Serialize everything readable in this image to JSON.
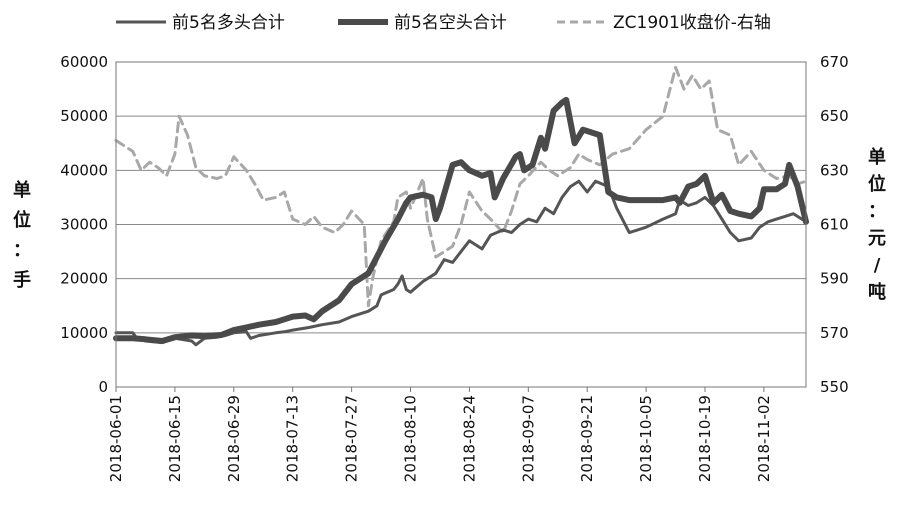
{
  "chart_data": {
    "type": "line",
    "title": "",
    "legend_position": "top",
    "grid": true,
    "left_axis": {
      "label_chars": [
        "单",
        "位",
        "：",
        "手"
      ],
      "ylim": [
        0,
        60000
      ],
      "ticks": [
        "0",
        "10000",
        "20000",
        "30000",
        "40000",
        "50000",
        "60000"
      ]
    },
    "right_axis": {
      "label_chars": [
        "单",
        "位",
        "：",
        "元",
        "/",
        "吨"
      ],
      "ylim": [
        550,
        670
      ],
      "ticks": [
        "550",
        "570",
        "590",
        "610",
        "630",
        "650",
        "670"
      ]
    },
    "x_axis": {
      "range": [
        "2018-06-01",
        "2018-11-12"
      ],
      "tick_labels": [
        "2018-06-01",
        "2018-06-15",
        "2018-06-29",
        "2018-07-13",
        "2018-07-27",
        "2018-08-10",
        "2018-08-24",
        "2018-09-07",
        "2018-09-21",
        "2018-10-05",
        "2018-10-19",
        "2018-11-02"
      ]
    },
    "series": [
      {
        "name": "前5名多头合计",
        "axis": "left",
        "color": "#555555",
        "style": "solid-thin",
        "points": [
          [
            "2018-06-01",
            10000
          ],
          [
            "2018-06-05",
            10000
          ],
          [
            "2018-06-06",
            9000
          ],
          [
            "2018-06-08",
            8500
          ],
          [
            "2018-06-12",
            8200
          ],
          [
            "2018-06-15",
            9000
          ],
          [
            "2018-06-19",
            8500
          ],
          [
            "2018-06-20",
            7800
          ],
          [
            "2018-06-22",
            9000
          ],
          [
            "2018-06-25",
            9200
          ],
          [
            "2018-06-27",
            9500
          ],
          [
            "2018-06-29",
            10000
          ],
          [
            "2018-07-02",
            10200
          ],
          [
            "2018-07-03",
            9000
          ],
          [
            "2018-07-05",
            9500
          ],
          [
            "2018-07-09",
            10000
          ],
          [
            "2018-07-11",
            10200
          ],
          [
            "2018-07-13",
            10500
          ],
          [
            "2018-07-17",
            11000
          ],
          [
            "2018-07-20",
            11500
          ],
          [
            "2018-07-24",
            12000
          ],
          [
            "2018-07-27",
            13000
          ],
          [
            "2018-07-31",
            14000
          ],
          [
            "2018-08-02",
            15000
          ],
          [
            "2018-08-03",
            17000
          ],
          [
            "2018-08-06",
            18000
          ],
          [
            "2018-08-07",
            19000
          ],
          [
            "2018-08-08",
            20500
          ],
          [
            "2018-08-09",
            18000
          ],
          [
            "2018-08-10",
            17500
          ],
          [
            "2018-08-13",
            19500
          ],
          [
            "2018-08-16",
            21000
          ],
          [
            "2018-08-18",
            23500
          ],
          [
            "2018-08-20",
            23000
          ],
          [
            "2018-08-22",
            25000
          ],
          [
            "2018-08-24",
            27000
          ],
          [
            "2018-08-27",
            25500
          ],
          [
            "2018-08-29",
            28000
          ],
          [
            "2018-09-01",
            29000
          ],
          [
            "2018-09-03",
            28500
          ],
          [
            "2018-09-05",
            30000
          ],
          [
            "2018-09-07",
            31000
          ],
          [
            "2018-09-09",
            30500
          ],
          [
            "2018-09-11",
            33000
          ],
          [
            "2018-09-13",
            32000
          ],
          [
            "2018-09-15",
            35000
          ],
          [
            "2018-09-17",
            37000
          ],
          [
            "2018-09-19",
            38000
          ],
          [
            "2018-09-21",
            36000
          ],
          [
            "2018-09-23",
            38000
          ],
          [
            "2018-09-26",
            37000
          ],
          [
            "2018-09-28",
            33000
          ],
          [
            "2018-10-01",
            28500
          ],
          [
            "2018-10-05",
            29500
          ],
          [
            "2018-10-09",
            31000
          ],
          [
            "2018-10-12",
            32000
          ],
          [
            "2018-10-13",
            34500
          ],
          [
            "2018-10-15",
            33500
          ],
          [
            "2018-10-17",
            34000
          ],
          [
            "2018-10-19",
            35000
          ],
          [
            "2018-10-21",
            33500
          ],
          [
            "2018-10-23",
            31000
          ],
          [
            "2018-10-25",
            28500
          ],
          [
            "2018-10-27",
            27000
          ],
          [
            "2018-10-30",
            27500
          ],
          [
            "2018-11-01",
            29500
          ],
          [
            "2018-11-03",
            30500
          ],
          [
            "2018-11-05",
            31000
          ],
          [
            "2018-11-07",
            31500
          ],
          [
            "2018-11-09",
            32000
          ],
          [
            "2018-11-11",
            31000
          ],
          [
            "2018-11-12",
            30500
          ]
        ]
      },
      {
        "name": "前5名空头合计",
        "axis": "left",
        "color": "#4a4a4a",
        "style": "solid-thick",
        "points": [
          [
            "2018-06-01",
            9000
          ],
          [
            "2018-06-05",
            9000
          ],
          [
            "2018-06-08",
            8800
          ],
          [
            "2018-06-12",
            8500
          ],
          [
            "2018-06-15",
            9200
          ],
          [
            "2018-06-19",
            9500
          ],
          [
            "2018-06-22",
            9400
          ],
          [
            "2018-06-26",
            9600
          ],
          [
            "2018-06-29",
            10500
          ],
          [
            "2018-07-02",
            11000
          ],
          [
            "2018-07-05",
            11500
          ],
          [
            "2018-07-09",
            12000
          ],
          [
            "2018-07-11",
            12500
          ],
          [
            "2018-07-13",
            13000
          ],
          [
            "2018-07-16",
            13200
          ],
          [
            "2018-07-18",
            12500
          ],
          [
            "2018-07-20",
            14000
          ],
          [
            "2018-07-24",
            16000
          ],
          [
            "2018-07-27",
            19000
          ],
          [
            "2018-07-31",
            21000
          ],
          [
            "2018-08-02",
            24000
          ],
          [
            "2018-08-04",
            27000
          ],
          [
            "2018-08-07",
            31000
          ],
          [
            "2018-08-09",
            34000
          ],
          [
            "2018-08-10",
            35000
          ],
          [
            "2018-08-13",
            35500
          ],
          [
            "2018-08-15",
            35000
          ],
          [
            "2018-08-16",
            31000
          ],
          [
            "2018-08-17",
            33000
          ],
          [
            "2018-08-20",
            41000
          ],
          [
            "2018-08-22",
            41500
          ],
          [
            "2018-08-24",
            40000
          ],
          [
            "2018-08-27",
            39000
          ],
          [
            "2018-08-29",
            39500
          ],
          [
            "2018-08-30",
            35000
          ],
          [
            "2018-09-01",
            38500
          ],
          [
            "2018-09-04",
            42500
          ],
          [
            "2018-09-05",
            43000
          ],
          [
            "2018-09-06",
            40000
          ],
          [
            "2018-09-08",
            41000
          ],
          [
            "2018-09-10",
            46000
          ],
          [
            "2018-09-11",
            44000
          ],
          [
            "2018-09-13",
            51000
          ],
          [
            "2018-09-15",
            52500
          ],
          [
            "2018-09-16",
            53000
          ],
          [
            "2018-09-18",
            45000
          ],
          [
            "2018-09-20",
            47500
          ],
          [
            "2018-09-24",
            46500
          ],
          [
            "2018-09-26",
            36000
          ],
          [
            "2018-09-28",
            35000
          ],
          [
            "2018-10-01",
            34500
          ],
          [
            "2018-10-05",
            34500
          ],
          [
            "2018-10-09",
            34500
          ],
          [
            "2018-10-12",
            35000
          ],
          [
            "2018-10-13",
            34000
          ],
          [
            "2018-10-15",
            37000
          ],
          [
            "2018-10-17",
            37500
          ],
          [
            "2018-10-19",
            39000
          ],
          [
            "2018-10-21",
            34000
          ],
          [
            "2018-10-23",
            35500
          ],
          [
            "2018-10-25",
            32500
          ],
          [
            "2018-10-27",
            32000
          ],
          [
            "2018-10-30",
            31500
          ],
          [
            "2018-11-01",
            33000
          ],
          [
            "2018-11-02",
            36500
          ],
          [
            "2018-11-05",
            36500
          ],
          [
            "2018-11-07",
            37500
          ],
          [
            "2018-11-08",
            41000
          ],
          [
            "2018-11-10",
            37000
          ],
          [
            "2018-11-12",
            30500
          ]
        ]
      },
      {
        "name": "ZC1901收盘价-右轴",
        "axis": "right",
        "color": "#a8a8a8",
        "style": "dashed",
        "points": [
          [
            "2018-06-01",
            641
          ],
          [
            "2018-06-05",
            637
          ],
          [
            "2018-06-07",
            630
          ],
          [
            "2018-06-09",
            633
          ],
          [
            "2018-06-11",
            631
          ],
          [
            "2018-06-13",
            628
          ],
          [
            "2018-06-15",
            636
          ],
          [
            "2018-06-16",
            650
          ],
          [
            "2018-06-18",
            643
          ],
          [
            "2018-06-20",
            631
          ],
          [
            "2018-06-22",
            628
          ],
          [
            "2018-06-25",
            627
          ],
          [
            "2018-06-27",
            628
          ],
          [
            "2018-06-29",
            635
          ],
          [
            "2018-07-02",
            630
          ],
          [
            "2018-07-04",
            625
          ],
          [
            "2018-07-06",
            619
          ],
          [
            "2018-07-09",
            620
          ],
          [
            "2018-07-11",
            622
          ],
          [
            "2018-07-13",
            612
          ],
          [
            "2018-07-16",
            610
          ],
          [
            "2018-07-18",
            613
          ],
          [
            "2018-07-20",
            609
          ],
          [
            "2018-07-23",
            607
          ],
          [
            "2018-07-25",
            610
          ],
          [
            "2018-07-27",
            615
          ],
          [
            "2018-07-30",
            610
          ],
          [
            "2018-07-31",
            580
          ],
          [
            "2018-08-01",
            590
          ],
          [
            "2018-08-03",
            604
          ],
          [
            "2018-08-06",
            611
          ],
          [
            "2018-08-07",
            620
          ],
          [
            "2018-08-09",
            622
          ],
          [
            "2018-08-10",
            616
          ],
          [
            "2018-08-13",
            627
          ],
          [
            "2018-08-14",
            612
          ],
          [
            "2018-08-16",
            598
          ],
          [
            "2018-08-18",
            600
          ],
          [
            "2018-08-20",
            602
          ],
          [
            "2018-08-22",
            610
          ],
          [
            "2018-08-24",
            622
          ],
          [
            "2018-08-27",
            615
          ],
          [
            "2018-08-29",
            612
          ],
          [
            "2018-09-01",
            607
          ],
          [
            "2018-09-03",
            615
          ],
          [
            "2018-09-05",
            625
          ],
          [
            "2018-09-07",
            628
          ],
          [
            "2018-09-10",
            633
          ],
          [
            "2018-09-12",
            630
          ],
          [
            "2018-09-14",
            628
          ],
          [
            "2018-09-17",
            631
          ],
          [
            "2018-09-19",
            636
          ],
          [
            "2018-09-21",
            634
          ],
          [
            "2018-09-24",
            632
          ],
          [
            "2018-09-27",
            636
          ],
          [
            "2018-10-01",
            638
          ],
          [
            "2018-10-05",
            645
          ],
          [
            "2018-10-09",
            650
          ],
          [
            "2018-10-12",
            668
          ],
          [
            "2018-10-14",
            660
          ],
          [
            "2018-10-16",
            665
          ],
          [
            "2018-10-18",
            660
          ],
          [
            "2018-10-20",
            663
          ],
          [
            "2018-10-22",
            645
          ],
          [
            "2018-10-25",
            643
          ],
          [
            "2018-10-27",
            632
          ],
          [
            "2018-10-30",
            637
          ],
          [
            "2018-11-02",
            630
          ],
          [
            "2018-11-05",
            627
          ],
          [
            "2018-11-08",
            628
          ],
          [
            "2018-11-10",
            625
          ],
          [
            "2018-11-12",
            626
          ]
        ]
      }
    ]
  }
}
